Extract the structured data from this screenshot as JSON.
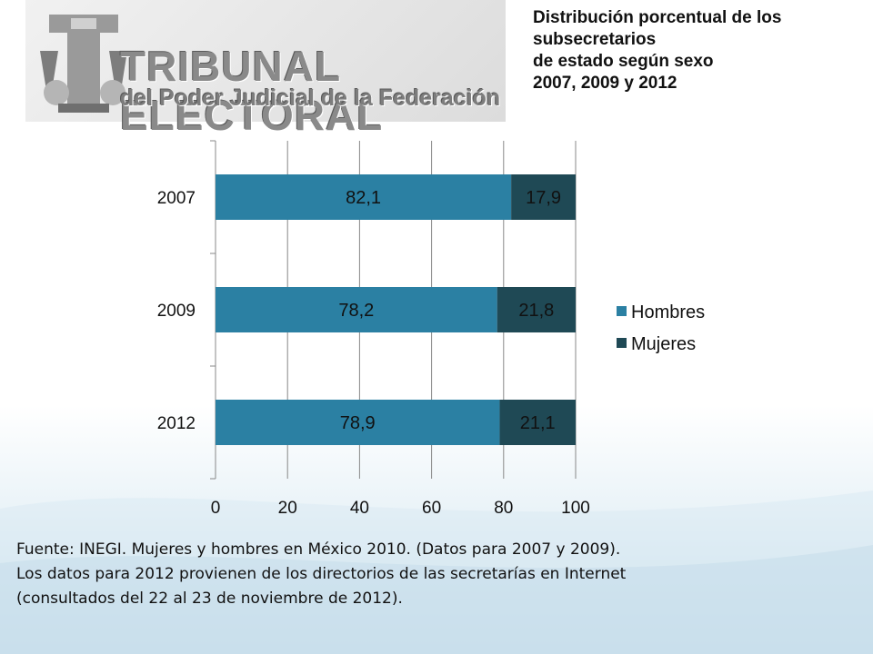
{
  "header": {
    "logo_line1": "TRIBUNAL ELECTORAL",
    "logo_line2": "del Poder Judicial de la Federación",
    "title_lines": [
      "Distribución porcentual de los",
      "subsecretarios",
      "de estado según sexo",
      "2007, 2009 y 2012"
    ]
  },
  "chart_data": {
    "type": "bar",
    "orientation": "horizontal",
    "stacked": true,
    "categories": [
      "2007",
      "2009",
      "2012"
    ],
    "series": [
      {
        "name": "Hombres",
        "values": [
          82.1,
          78.2,
          78.9
        ],
        "labels": [
          "82,1",
          "78,2",
          "78,9"
        ],
        "color": "#2b80a3"
      },
      {
        "name": "Mujeres",
        "values": [
          17.9,
          21.8,
          21.1
        ],
        "labels": [
          "17,9",
          "21,8",
          "21,1"
        ],
        "color": "#1f4955"
      }
    ],
    "xlim": [
      0,
      100
    ],
    "xticks": [
      "0",
      "20",
      "40",
      "60",
      "80",
      "100"
    ],
    "grid": true,
    "legend": "right"
  },
  "footer": {
    "source_text": "Fuente: INEGI. Mujeres y hombres en México 2010. (Datos para 2007 y 2009). Los datos para 2012 provienen de los directorios de las secretarías en Internet (consultados del 22 al 23 de noviembre de 2012)."
  },
  "colors": {
    "label_text": "#111111",
    "grid": "#888888"
  }
}
